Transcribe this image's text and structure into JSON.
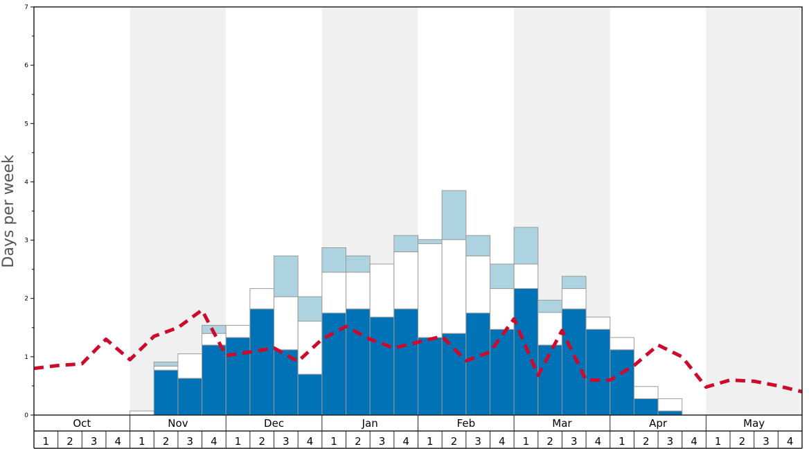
{
  "chart_data": {
    "type": "bar",
    "ylabel": "Days per week",
    "xlabel": "",
    "ylim": [
      0,
      7
    ],
    "y_ticks": [
      "0",
      "1",
      "2",
      "3",
      "4",
      "5",
      "6",
      "7"
    ],
    "months": [
      "Oct",
      "Nov",
      "Dec",
      "Jan",
      "Feb",
      "Mar",
      "Apr",
      "May"
    ],
    "weeks": [
      "1",
      "2",
      "3",
      "4"
    ],
    "stacked": true,
    "series": [
      {
        "color": "#0172b5",
        "values": [
          0,
          0,
          0,
          0,
          0,
          0.77,
          0.63,
          1.2,
          1.33,
          1.82,
          1.12,
          0.7,
          1.75,
          1.82,
          1.68,
          1.82,
          1.33,
          1.4,
          1.75,
          1.47,
          2.17,
          1.2,
          1.82,
          1.47,
          1.12,
          0.28,
          0.07,
          0,
          0,
          0,
          0,
          0
        ]
      },
      {
        "color": "#ffffff",
        "values": [
          0,
          0,
          0,
          0,
          0.07,
          0.07,
          0.42,
          0.2,
          0.21,
          0.35,
          0.91,
          0.91,
          0.7,
          0.63,
          0.91,
          0.98,
          1.61,
          1.61,
          0.98,
          0.7,
          0.42,
          0.56,
          0.35,
          0.21,
          0.21,
          0.21,
          0.21,
          0,
          0,
          0,
          0,
          0
        ]
      },
      {
        "color": "#aed3e0",
        "values": [
          0,
          0,
          0,
          0,
          0,
          0.07,
          0,
          0.14,
          0,
          0,
          0.7,
          0.42,
          0.42,
          0.28,
          0,
          0.28,
          0.07,
          0.84,
          0.35,
          0.42,
          0.63,
          0.21,
          0.21,
          0,
          0,
          0,
          0,
          0,
          0,
          0,
          0,
          0
        ]
      }
    ],
    "line": {
      "color": "#cc0a2c",
      "style": "dashed",
      "values": [
        0.8,
        0.85,
        0.88,
        1.3,
        0.95,
        1.35,
        1.5,
        1.8,
        1.02,
        1.08,
        1.15,
        0.92,
        1.3,
        1.52,
        1.3,
        1.15,
        1.25,
        1.35,
        0.93,
        1.08,
        1.65,
        0.68,
        1.45,
        0.6,
        0.6,
        0.85,
        1.2,
        1.0,
        0.48,
        0.6,
        0.58,
        0.5,
        0.4
      ]
    },
    "shading": "alternate-months",
    "colors": {
      "shade": "#f0f0f0",
      "border": "#222222",
      "bar_stroke": "#9a9a9a"
    },
    "grid": false
  }
}
